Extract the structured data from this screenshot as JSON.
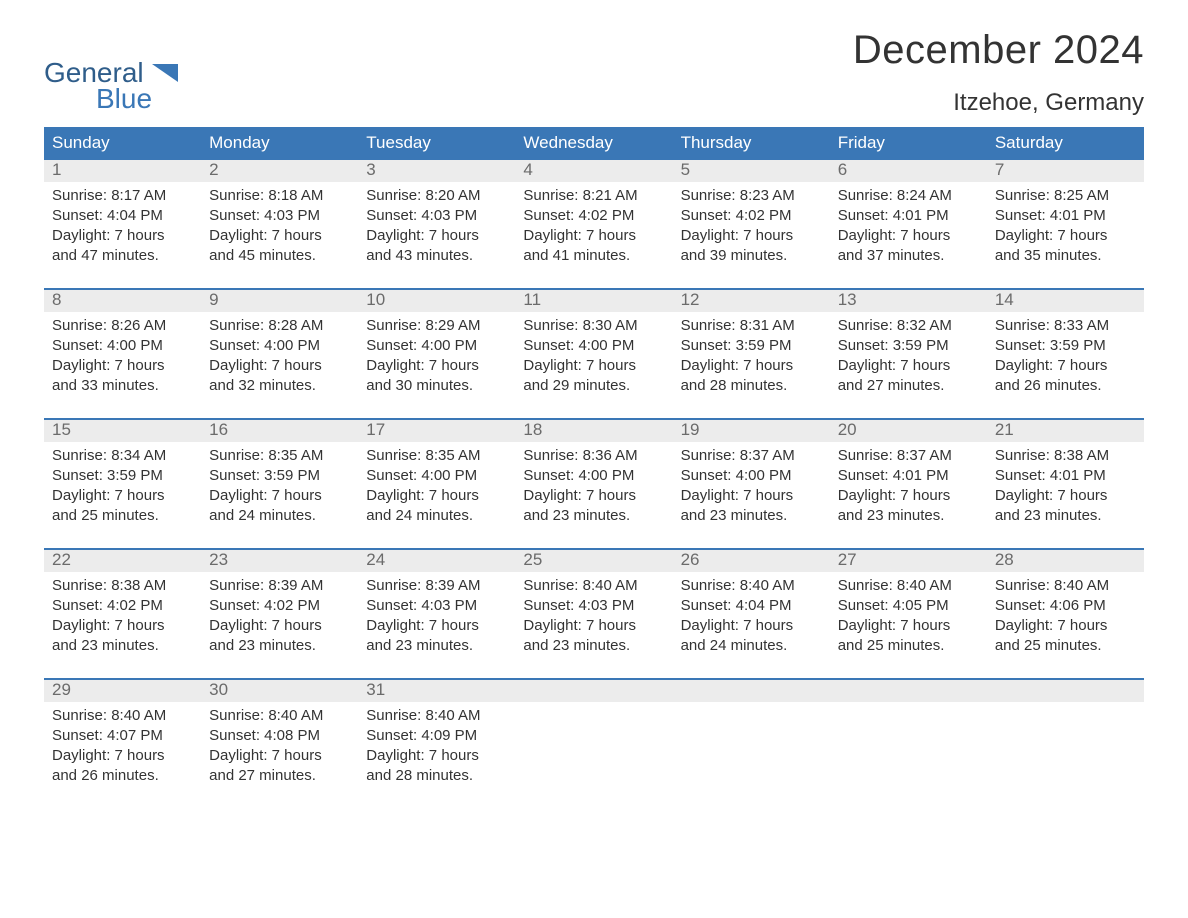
{
  "brand": {
    "word1": "General",
    "word2": "Blue"
  },
  "title": "December 2024",
  "location": "Itzehoe, Germany",
  "colors": {
    "header_bg": "#3a77b6",
    "header_text": "#ffffff",
    "band_bg": "#ececec",
    "daynum_text": "#6b6b6b",
    "body_text": "#333333",
    "rule": "#3a77b6",
    "logo_dark": "#2f5d8a",
    "logo_blue": "#3a77b6"
  },
  "day_names": [
    "Sunday",
    "Monday",
    "Tuesday",
    "Wednesday",
    "Thursday",
    "Friday",
    "Saturday"
  ],
  "weeks": [
    [
      {
        "n": "1",
        "sr": "8:17 AM",
        "ss": "4:04 PM",
        "dl": "7 hours and 47 minutes."
      },
      {
        "n": "2",
        "sr": "8:18 AM",
        "ss": "4:03 PM",
        "dl": "7 hours and 45 minutes."
      },
      {
        "n": "3",
        "sr": "8:20 AM",
        "ss": "4:03 PM",
        "dl": "7 hours and 43 minutes."
      },
      {
        "n": "4",
        "sr": "8:21 AM",
        "ss": "4:02 PM",
        "dl": "7 hours and 41 minutes."
      },
      {
        "n": "5",
        "sr": "8:23 AM",
        "ss": "4:02 PM",
        "dl": "7 hours and 39 minutes."
      },
      {
        "n": "6",
        "sr": "8:24 AM",
        "ss": "4:01 PM",
        "dl": "7 hours and 37 minutes."
      },
      {
        "n": "7",
        "sr": "8:25 AM",
        "ss": "4:01 PM",
        "dl": "7 hours and 35 minutes."
      }
    ],
    [
      {
        "n": "8",
        "sr": "8:26 AM",
        "ss": "4:00 PM",
        "dl": "7 hours and 33 minutes."
      },
      {
        "n": "9",
        "sr": "8:28 AM",
        "ss": "4:00 PM",
        "dl": "7 hours and 32 minutes."
      },
      {
        "n": "10",
        "sr": "8:29 AM",
        "ss": "4:00 PM",
        "dl": "7 hours and 30 minutes."
      },
      {
        "n": "11",
        "sr": "8:30 AM",
        "ss": "4:00 PM",
        "dl": "7 hours and 29 minutes."
      },
      {
        "n": "12",
        "sr": "8:31 AM",
        "ss": "3:59 PM",
        "dl": "7 hours and 28 minutes."
      },
      {
        "n": "13",
        "sr": "8:32 AM",
        "ss": "3:59 PM",
        "dl": "7 hours and 27 minutes."
      },
      {
        "n": "14",
        "sr": "8:33 AM",
        "ss": "3:59 PM",
        "dl": "7 hours and 26 minutes."
      }
    ],
    [
      {
        "n": "15",
        "sr": "8:34 AM",
        "ss": "3:59 PM",
        "dl": "7 hours and 25 minutes."
      },
      {
        "n": "16",
        "sr": "8:35 AM",
        "ss": "3:59 PM",
        "dl": "7 hours and 24 minutes."
      },
      {
        "n": "17",
        "sr": "8:35 AM",
        "ss": "4:00 PM",
        "dl": "7 hours and 24 minutes."
      },
      {
        "n": "18",
        "sr": "8:36 AM",
        "ss": "4:00 PM",
        "dl": "7 hours and 23 minutes."
      },
      {
        "n": "19",
        "sr": "8:37 AM",
        "ss": "4:00 PM",
        "dl": "7 hours and 23 minutes."
      },
      {
        "n": "20",
        "sr": "8:37 AM",
        "ss": "4:01 PM",
        "dl": "7 hours and 23 minutes."
      },
      {
        "n": "21",
        "sr": "8:38 AM",
        "ss": "4:01 PM",
        "dl": "7 hours and 23 minutes."
      }
    ],
    [
      {
        "n": "22",
        "sr": "8:38 AM",
        "ss": "4:02 PM",
        "dl": "7 hours and 23 minutes."
      },
      {
        "n": "23",
        "sr": "8:39 AM",
        "ss": "4:02 PM",
        "dl": "7 hours and 23 minutes."
      },
      {
        "n": "24",
        "sr": "8:39 AM",
        "ss": "4:03 PM",
        "dl": "7 hours and 23 minutes."
      },
      {
        "n": "25",
        "sr": "8:40 AM",
        "ss": "4:03 PM",
        "dl": "7 hours and 23 minutes."
      },
      {
        "n": "26",
        "sr": "8:40 AM",
        "ss": "4:04 PM",
        "dl": "7 hours and 24 minutes."
      },
      {
        "n": "27",
        "sr": "8:40 AM",
        "ss": "4:05 PM",
        "dl": "7 hours and 25 minutes."
      },
      {
        "n": "28",
        "sr": "8:40 AM",
        "ss": "4:06 PM",
        "dl": "7 hours and 25 minutes."
      }
    ],
    [
      {
        "n": "29",
        "sr": "8:40 AM",
        "ss": "4:07 PM",
        "dl": "7 hours and 26 minutes."
      },
      {
        "n": "30",
        "sr": "8:40 AM",
        "ss": "4:08 PM",
        "dl": "7 hours and 27 minutes."
      },
      {
        "n": "31",
        "sr": "8:40 AM",
        "ss": "4:09 PM",
        "dl": "7 hours and 28 minutes."
      },
      null,
      null,
      null,
      null
    ]
  ],
  "labels": {
    "sunrise": "Sunrise:",
    "sunset": "Sunset:",
    "daylight": "Daylight:"
  }
}
